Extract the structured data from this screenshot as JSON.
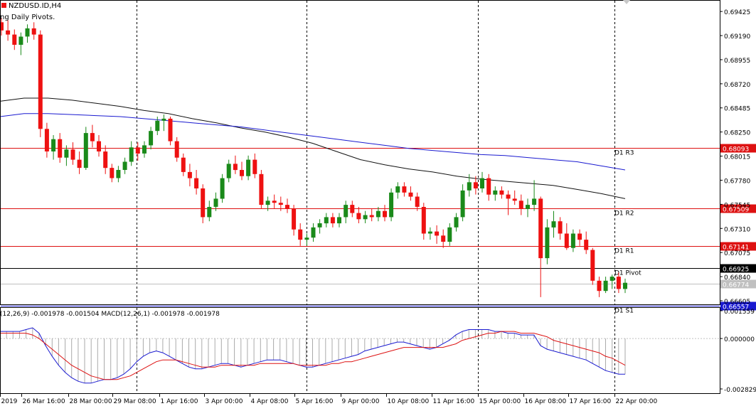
{
  "header": {
    "symbol_label": "NZDUSD.ID,H4",
    "indicator_label": "ng Daily Pivots."
  },
  "colors": {
    "bull": "#1a8a1a",
    "bear": "#ee1111",
    "ma_fast": "#111111",
    "ma_slow": "#1a1ad0",
    "level_red": "#dd1111",
    "level_pivot": "#000000",
    "level_s1": "#1a1ad0",
    "macd_hist": "#aaaaaa",
    "macd_main": "#1a1ad0",
    "macd_signal": "#dd1111"
  },
  "chart_data": [
    {
      "type": "candlestick",
      "title": "NZDUSD.ID,H4",
      "ylim": [
        0.6657,
        0.6953
      ],
      "y_ticks": [
        "0.69425",
        "0.69190",
        "0.68955",
        "0.68720",
        "0.68485",
        "0.68250",
        "0.68015",
        "0.67780",
        "0.67545",
        "0.67310",
        "0.67075",
        "0.66840",
        "0.66605"
      ],
      "x_tick_labels": [
        "2019",
        "26 Mar 16:00",
        "28 Mar 00:00",
        "29 Mar 08:00",
        "1 Apr 16:00",
        "3 Apr 00:00",
        "4 Apr 08:00",
        "5 Apr 16:00",
        "9 Apr 00:00",
        "10 Apr 08:00",
        "11 Apr 16:00",
        "15 Apr 00:00",
        "16 Apr 08:00",
        "17 Apr 16:00",
        "22 Apr 00:00"
      ],
      "candles": [
        [
          0.6932,
          0.6936,
          0.6919,
          0.6924
        ],
        [
          0.6924,
          0.6934,
          0.6914,
          0.692
        ],
        [
          0.692,
          0.6925,
          0.6905,
          0.691
        ],
        [
          0.691,
          0.6922,
          0.69,
          0.6918
        ],
        [
          0.6918,
          0.693,
          0.6912,
          0.6926
        ],
        [
          0.6926,
          0.6932,
          0.6915,
          0.692
        ],
        [
          0.692,
          0.6924,
          0.682,
          0.6828
        ],
        [
          0.6828,
          0.6834,
          0.68,
          0.6806
        ],
        [
          0.6806,
          0.6822,
          0.6798,
          0.6818
        ],
        [
          0.6818,
          0.6824,
          0.6795,
          0.68
        ],
        [
          0.68,
          0.6812,
          0.6792,
          0.6808
        ],
        [
          0.6808,
          0.6815,
          0.6793,
          0.6798
        ],
        [
          0.6798,
          0.6806,
          0.6784,
          0.679
        ],
        [
          0.679,
          0.683,
          0.6788,
          0.6824
        ],
        [
          0.6824,
          0.6832,
          0.681,
          0.6816
        ],
        [
          0.6816,
          0.6822,
          0.6801,
          0.6806
        ],
        [
          0.6806,
          0.6812,
          0.6784,
          0.679
        ],
        [
          0.679,
          0.6794,
          0.6776,
          0.678
        ],
        [
          0.678,
          0.6792,
          0.6776,
          0.6788
        ],
        [
          0.6788,
          0.68,
          0.6784,
          0.6796
        ],
        [
          0.6796,
          0.6816,
          0.6792,
          0.681
        ],
        [
          0.681,
          0.6815,
          0.6797,
          0.6804
        ],
        [
          0.6804,
          0.6816,
          0.68,
          0.6812
        ],
        [
          0.6812,
          0.683,
          0.6808,
          0.6826
        ],
        [
          0.6826,
          0.684,
          0.6822,
          0.6836
        ],
        [
          0.6836,
          0.6842,
          0.6826,
          0.6838
        ],
        [
          0.6838,
          0.684,
          0.6812,
          0.6816
        ],
        [
          0.6816,
          0.682,
          0.6796,
          0.68
        ],
        [
          0.68,
          0.6804,
          0.6782,
          0.6786
        ],
        [
          0.6786,
          0.6794,
          0.6772,
          0.678
        ],
        [
          0.678,
          0.6788,
          0.6764,
          0.677
        ],
        [
          0.677,
          0.6774,
          0.6736,
          0.6742
        ],
        [
          0.6742,
          0.6758,
          0.6738,
          0.6752
        ],
        [
          0.6752,
          0.6766,
          0.6748,
          0.676
        ],
        [
          0.676,
          0.6784,
          0.6756,
          0.678
        ],
        [
          0.678,
          0.6798,
          0.6776,
          0.6794
        ],
        [
          0.6794,
          0.6802,
          0.6784,
          0.6788
        ],
        [
          0.6788,
          0.6796,
          0.6778,
          0.6782
        ],
        [
          0.6782,
          0.6802,
          0.6778,
          0.6798
        ],
        [
          0.6798,
          0.6804,
          0.678,
          0.6784
        ],
        [
          0.6784,
          0.6788,
          0.675,
          0.6754
        ],
        [
          0.6754,
          0.6762,
          0.6748,
          0.6758
        ],
        [
          0.6758,
          0.6764,
          0.675,
          0.6756
        ],
        [
          0.6756,
          0.6762,
          0.6748,
          0.6754
        ],
        [
          0.6754,
          0.676,
          0.6746,
          0.675
        ],
        [
          0.675,
          0.6754,
          0.6724,
          0.673
        ],
        [
          0.673,
          0.6736,
          0.6714,
          0.672
        ],
        [
          0.672,
          0.6726,
          0.6714,
          0.6722
        ],
        [
          0.6722,
          0.6736,
          0.6718,
          0.6732
        ],
        [
          0.6732,
          0.674,
          0.6726,
          0.6736
        ],
        [
          0.6736,
          0.6746,
          0.6732,
          0.6742
        ],
        [
          0.6742,
          0.6746,
          0.6732,
          0.6736
        ],
        [
          0.6736,
          0.6746,
          0.6732,
          0.6742
        ],
        [
          0.6742,
          0.6758,
          0.6736,
          0.6754
        ],
        [
          0.6754,
          0.6758,
          0.6742,
          0.6746
        ],
        [
          0.6746,
          0.6752,
          0.6736,
          0.674
        ],
        [
          0.674,
          0.6748,
          0.6736,
          0.6744
        ],
        [
          0.6744,
          0.675,
          0.6738,
          0.6742
        ],
        [
          0.6742,
          0.6752,
          0.6738,
          0.6748
        ],
        [
          0.6748,
          0.6754,
          0.6738,
          0.6742
        ],
        [
          0.6742,
          0.677,
          0.6738,
          0.6766
        ],
        [
          0.6766,
          0.6776,
          0.676,
          0.6772
        ],
        [
          0.6772,
          0.6776,
          0.6762,
          0.6766
        ],
        [
          0.6766,
          0.6772,
          0.6758,
          0.6762
        ],
        [
          0.6762,
          0.6766,
          0.6748,
          0.6752
        ],
        [
          0.6752,
          0.6756,
          0.672,
          0.6726
        ],
        [
          0.6726,
          0.6732,
          0.672,
          0.6728
        ],
        [
          0.6728,
          0.6734,
          0.6716,
          0.6724
        ],
        [
          0.6724,
          0.673,
          0.6712,
          0.6718
        ],
        [
          0.6718,
          0.6736,
          0.6714,
          0.6732
        ],
        [
          0.6732,
          0.6746,
          0.6728,
          0.6742
        ],
        [
          0.6742,
          0.6774,
          0.6738,
          0.6768
        ],
        [
          0.6768,
          0.6784,
          0.6762,
          0.6776
        ],
        [
          0.6776,
          0.6782,
          0.6764,
          0.677
        ],
        [
          0.677,
          0.6786,
          0.6766,
          0.678
        ],
        [
          0.678,
          0.6784,
          0.6758,
          0.6764
        ],
        [
          0.6764,
          0.6772,
          0.6758,
          0.6768
        ],
        [
          0.6768,
          0.6772,
          0.676,
          0.6764
        ],
        [
          0.6764,
          0.6768,
          0.6744,
          0.676
        ],
        [
          0.676,
          0.6768,
          0.6754,
          0.6758
        ],
        [
          0.6758,
          0.6764,
          0.6744,
          0.675
        ],
        [
          0.675,
          0.676,
          0.6742,
          0.6754
        ],
        [
          0.6754,
          0.6778,
          0.6748,
          0.676
        ],
        [
          0.676,
          0.6762,
          0.6664,
          0.6702
        ],
        [
          0.6702,
          0.674,
          0.6696,
          0.6732
        ],
        [
          0.6732,
          0.6748,
          0.6722,
          0.6738
        ],
        [
          0.6738,
          0.6742,
          0.672,
          0.6726
        ],
        [
          0.6726,
          0.6736,
          0.671,
          0.6712
        ],
        [
          0.6712,
          0.673,
          0.6708,
          0.6726
        ],
        [
          0.6726,
          0.673,
          0.6714,
          0.672
        ],
        [
          0.672,
          0.6728,
          0.6706,
          0.671
        ],
        [
          0.671,
          0.6712,
          0.6676,
          0.668
        ],
        [
          0.668,
          0.6684,
          0.6664,
          0.667
        ],
        [
          0.667,
          0.6684,
          0.6668,
          0.668
        ],
        [
          0.668,
          0.6686,
          0.6672,
          0.6684
        ],
        [
          0.6684,
          0.6688,
          0.6668,
          0.6672
        ],
        [
          0.6672,
          0.6682,
          0.6668,
          0.6678
        ]
      ],
      "ma_fast": [
        0.6855,
        0.6858,
        0.6858,
        0.6856,
        0.6853,
        0.685,
        0.6846,
        0.6843,
        0.6838,
        0.6834,
        0.6829,
        0.6825,
        0.682,
        0.6814,
        0.6806,
        0.6798,
        0.6793,
        0.6789,
        0.6786,
        0.6782,
        0.6779,
        0.6777,
        0.6775,
        0.6773,
        0.6769,
        0.6765,
        0.676
      ],
      "ma_slow": [
        0.684,
        0.6843,
        0.6843,
        0.6842,
        0.6841,
        0.684,
        0.6838,
        0.6836,
        0.6834,
        0.6832,
        0.683,
        0.6827,
        0.6824,
        0.6821,
        0.6818,
        0.6815,
        0.6812,
        0.6809,
        0.6807,
        0.6805,
        0.6803,
        0.6802,
        0.68,
        0.6798,
        0.6796,
        0.6792,
        0.6788
      ],
      "levels": [
        {
          "label": "D1 R3",
          "value": 0.68093,
          "value_text": "0.68093",
          "style": "red"
        },
        {
          "label": "D1 R2",
          "value": 0.67509,
          "value_text": "0.67509",
          "style": "red"
        },
        {
          "label": "D1 R1",
          "value": 0.67141,
          "value_text": "0.67141",
          "style": "red"
        },
        {
          "label": "D1 Pivot",
          "value": 0.66925,
          "value_text": "0.66925",
          "style": "pivot"
        },
        {
          "label": "D1 S1",
          "value": 0.66557,
          "value_text": "0.66557",
          "style": "s1"
        }
      ],
      "current_price": {
        "value": 0.66774,
        "value_text": "0.66774"
      }
    },
    {
      "type": "bar",
      "title": "MACD(12,26,9)",
      "header_text": "(12,26,9) -0.001978 -0.001504 MACD(12,26,1) -0.001978 -0.001978",
      "ylim": [
        -0.002829,
        0.001559
      ],
      "y_ticks": [
        "0.001559",
        "0.000000",
        "-0.002829"
      ],
      "histogram": [
        0.0004,
        0.0004,
        0.0004,
        0.0004,
        0.0005,
        0.0006,
        0.0003,
        -0.0004,
        -0.001,
        -0.0015,
        -0.0019,
        -0.0022,
        -0.0024,
        -0.0025,
        -0.0025,
        -0.0024,
        -0.0023,
        -0.0023,
        -0.0022,
        -0.002,
        -0.0017,
        -0.0013,
        -0.001,
        -0.0008,
        -0.0007,
        -0.0008,
        -0.001,
        -0.0012,
        -0.0014,
        -0.0016,
        -0.0017,
        -0.0017,
        -0.0016,
        -0.0015,
        -0.0014,
        -0.0014,
        -0.0015,
        -0.0016,
        -0.0015,
        -0.0014,
        -0.0013,
        -0.0012,
        -0.0012,
        -0.0012,
        -0.0013,
        -0.0014,
        -0.0015,
        -0.0016,
        -0.0016,
        -0.0015,
        -0.0014,
        -0.0013,
        -0.0012,
        -0.0011,
        -0.001,
        -0.0009,
        -0.0007,
        -0.0006,
        -0.0005,
        -0.0004,
        -0.0003,
        -0.0002,
        -0.0002,
        -0.0003,
        -0.0004,
        -0.0005,
        -0.0006,
        -0.0005,
        -0.0003,
        -0.0001,
        0.0002,
        0.0004,
        0.0005,
        0.0005,
        0.0005,
        0.0005,
        0.0004,
        0.0004,
        0.0003,
        0.0003,
        0.0002,
        0.0002,
        0.0002,
        -0.0004,
        -0.0006,
        -0.0007,
        -0.0008,
        -0.0009,
        -0.001,
        -0.0011,
        -0.0012,
        -0.0014,
        -0.0016,
        -0.0018,
        -0.0019,
        -0.002,
        -0.002
      ],
      "signal": [
        0.0003,
        0.0003,
        0.0003,
        0.0003,
        0.0003,
        0.0002,
        0.0,
        -0.0003,
        -0.0006,
        -0.0009,
        -0.0012,
        -0.0015,
        -0.0017,
        -0.0019,
        -0.0021,
        -0.0022,
        -0.0023,
        -0.0023,
        -0.0023,
        -0.0022,
        -0.0021,
        -0.0019,
        -0.0017,
        -0.0015,
        -0.0013,
        -0.0012,
        -0.0012,
        -0.0012,
        -0.0013,
        -0.0014,
        -0.0015,
        -0.0016,
        -0.0016,
        -0.0016,
        -0.0015,
        -0.0015,
        -0.0015,
        -0.0015,
        -0.0015,
        -0.0015,
        -0.0014,
        -0.0014,
        -0.0014,
        -0.0014,
        -0.0014,
        -0.0014,
        -0.0015,
        -0.0015,
        -0.0015,
        -0.0015,
        -0.0015,
        -0.0014,
        -0.0014,
        -0.0013,
        -0.0013,
        -0.0012,
        -0.0011,
        -0.001,
        -0.0009,
        -0.0008,
        -0.0007,
        -0.0006,
        -0.0005,
        -0.0005,
        -0.0005,
        -0.0005,
        -0.0005,
        -0.0005,
        -0.0005,
        -0.0004,
        -0.0003,
        -0.0001,
        0.0,
        0.0001,
        0.0002,
        0.0003,
        0.0003,
        0.0004,
        0.0004,
        0.0004,
        0.0003,
        0.0003,
        0.0003,
        0.0002,
        0.0001,
        -0.0001,
        -0.0002,
        -0.0003,
        -0.0004,
        -0.0005,
        -0.0006,
        -0.0007,
        -0.0008,
        -0.001,
        -0.0011,
        -0.0013,
        -0.0015
      ]
    }
  ]
}
